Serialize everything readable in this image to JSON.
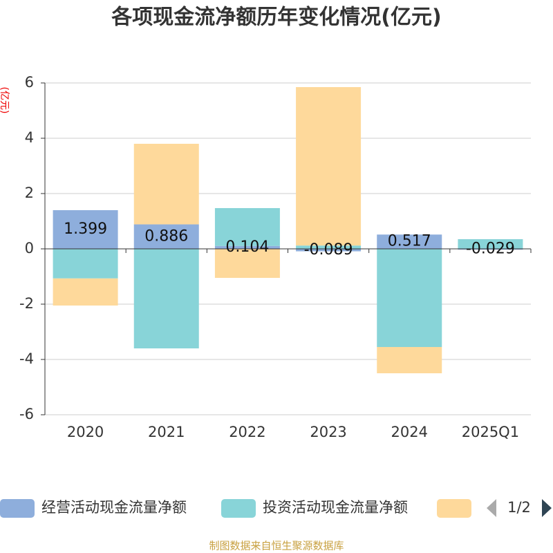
{
  "chart_data": {
    "type": "stacked_bar",
    "title": "各项现金流净额历年变化情况(亿元)",
    "y_label": "(亿元)",
    "categories": [
      "2020",
      "2021",
      "2022",
      "2023",
      "2024",
      "2025Q1"
    ],
    "series": [
      {
        "name": "经营活动现金流量净额",
        "color": "#8eaedc",
        "values": [
          1.399,
          0.886,
          0.104,
          -0.089,
          0.517,
          -0.029
        ],
        "value_labels": [
          "1.399",
          "0.886",
          "0.104",
          "-0.089",
          "0.517",
          "-0.029"
        ]
      },
      {
        "name": "投资活动现金流量净额",
        "color": "#88d4d8",
        "values": [
          -1.07,
          -3.6,
          1.37,
          0.12,
          -3.55,
          0.35
        ]
      },
      {
        "color": "#fed99b",
        "values": [
          -0.98,
          2.914,
          -1.05,
          5.73,
          -0.95,
          0
        ]
      }
    ],
    "ylim": [
      -6,
      6
    ],
    "yticks": [
      -6,
      -4,
      -2,
      0,
      2,
      4,
      6
    ],
    "grid": true,
    "legend_pager": "1/2",
    "source": "制图数据来自恒生聚源数据库"
  }
}
